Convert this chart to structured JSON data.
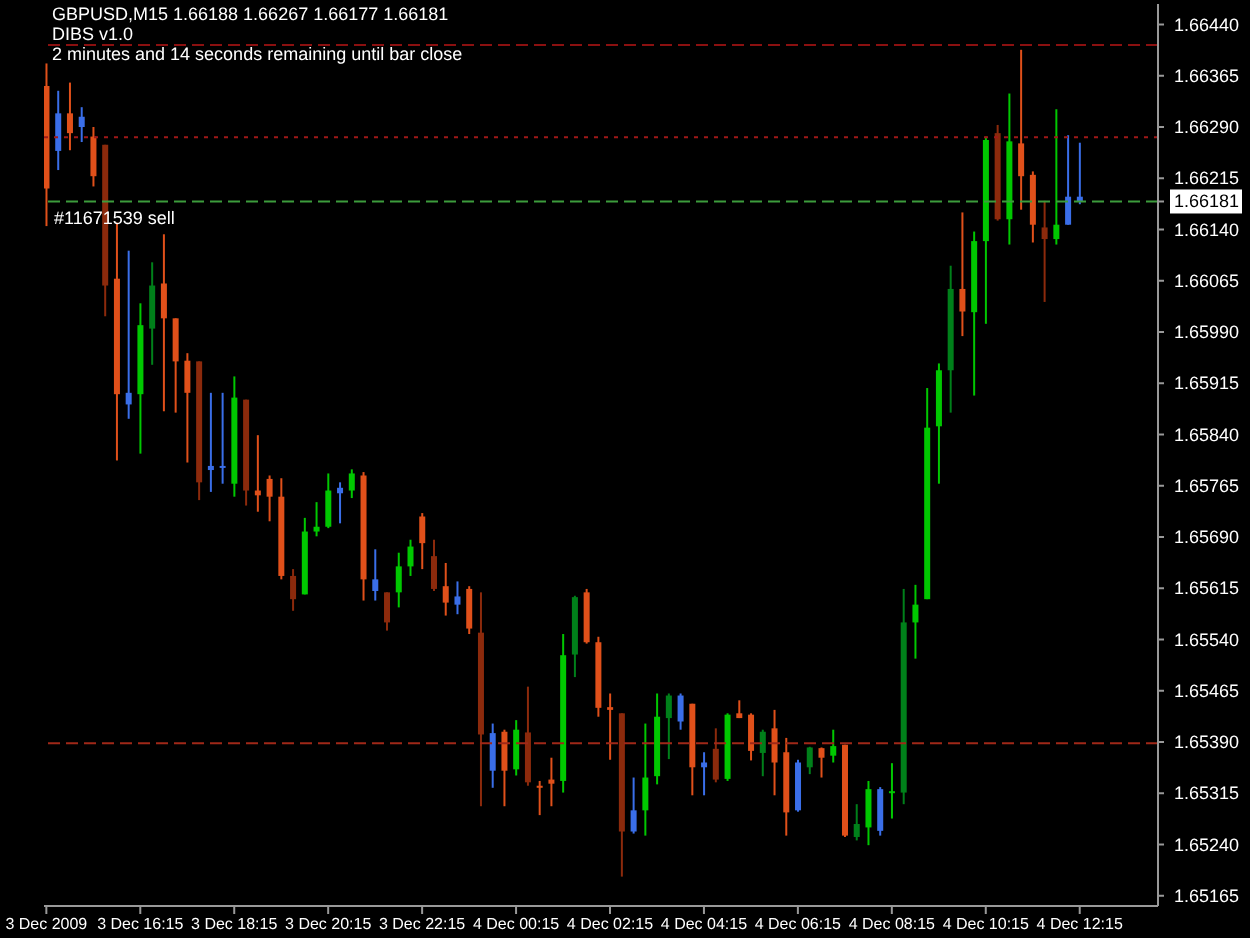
{
  "chart_data": {
    "type": "candlestick",
    "title": "GBPUSD,M15  1.66188 1.66267 1.66177 1.66181",
    "subtitle": "DIBS v1.0",
    "annotations": [
      "2 minutes and 14 seconds remaining until bar close"
    ],
    "x": [
      "2009-12-03T14:15",
      "2009-12-03T14:30",
      "2009-12-03T14:45",
      "2009-12-03T15:00",
      "2009-12-03T15:15",
      "2009-12-03T15:30",
      "2009-12-03T15:45",
      "2009-12-03T16:00",
      "2009-12-03T16:15",
      "2009-12-03T16:30",
      "2009-12-03T16:45",
      "2009-12-03T17:00",
      "2009-12-03T17:15",
      "2009-12-03T17:30",
      "2009-12-03T17:45",
      "2009-12-03T18:00",
      "2009-12-03T18:15",
      "2009-12-03T18:30",
      "2009-12-03T18:45",
      "2009-12-03T19:00",
      "2009-12-03T19:15",
      "2009-12-03T19:30",
      "2009-12-03T19:45",
      "2009-12-03T20:00",
      "2009-12-03T20:15",
      "2009-12-03T20:30",
      "2009-12-03T20:45",
      "2009-12-03T21:00",
      "2009-12-03T21:15",
      "2009-12-03T21:30",
      "2009-12-03T21:45",
      "2009-12-03T22:00",
      "2009-12-03T22:15",
      "2009-12-03T22:30",
      "2009-12-03T22:45",
      "2009-12-03T23:00",
      "2009-12-03T23:15",
      "2009-12-03T23:30",
      "2009-12-03T23:45",
      "2009-12-04T00:00",
      "2009-12-04T00:15",
      "2009-12-04T00:30",
      "2009-12-04T00:45",
      "2009-12-04T01:00",
      "2009-12-04T01:15",
      "2009-12-04T01:30",
      "2009-12-04T01:45",
      "2009-12-04T02:00",
      "2009-12-04T02:15",
      "2009-12-04T02:30",
      "2009-12-04T02:45",
      "2009-12-04T03:00",
      "2009-12-04T03:15",
      "2009-12-04T03:30",
      "2009-12-04T03:45",
      "2009-12-04T04:00",
      "2009-12-04T04:15",
      "2009-12-04T04:30",
      "2009-12-04T04:45",
      "2009-12-04T05:00",
      "2009-12-04T05:15",
      "2009-12-04T05:30",
      "2009-12-04T05:45",
      "2009-12-04T06:00",
      "2009-12-04T06:15",
      "2009-12-04T06:30",
      "2009-12-04T06:45",
      "2009-12-04T07:00",
      "2009-12-04T07:15",
      "2009-12-04T07:30",
      "2009-12-04T07:45",
      "2009-12-04T08:00",
      "2009-12-04T08:15",
      "2009-12-04T08:30",
      "2009-12-04T08:45",
      "2009-12-04T09:00",
      "2009-12-04T09:15",
      "2009-12-04T09:30",
      "2009-12-04T09:45",
      "2009-12-04T10:00",
      "2009-12-04T10:15",
      "2009-12-04T10:30",
      "2009-12-04T10:45",
      "2009-12-04T11:00",
      "2009-12-04T11:15",
      "2009-12-04T11:30",
      "2009-12-04T11:45",
      "2009-12-04T12:00",
      "2009-12-04T12:15"
    ],
    "ohlc": [
      [
        1.6635,
        1.66383,
        1.66145,
        1.662
      ],
      [
        1.66255,
        1.66343,
        1.66227,
        1.6631
      ],
      [
        1.6631,
        1.66355,
        1.66256,
        1.66281
      ],
      [
        1.6629,
        1.66319,
        1.66268,
        1.66305
      ],
      [
        1.66276,
        1.6629,
        1.66203,
        1.66218
      ],
      [
        1.66264,
        1.66264,
        1.66013,
        1.66058
      ],
      [
        1.66068,
        1.6615,
        1.65802,
        1.65899
      ],
      [
        1.65901,
        1.66109,
        1.65863,
        1.65884
      ],
      [
        1.65899,
        1.66032,
        1.65812,
        1.66
      ],
      [
        1.65995,
        1.66092,
        1.65942,
        1.66058
      ],
      [
        1.66061,
        1.66133,
        1.65874,
        1.6601
      ],
      [
        1.6601,
        1.6601,
        1.65872,
        1.65947
      ],
      [
        1.65948,
        1.65959,
        1.65799,
        1.65901
      ],
      [
        1.65947,
        1.65947,
        1.65744,
        1.6577
      ],
      [
        1.65788,
        1.65901,
        1.65756,
        1.65794
      ],
      [
        1.65792,
        1.65901,
        1.65768,
        1.65794
      ],
      [
        1.65768,
        1.65925,
        1.65749,
        1.65894
      ],
      [
        1.65891,
        1.65891,
        1.65736,
        1.65758
      ],
      [
        1.65758,
        1.65839,
        1.65727,
        1.65751
      ],
      [
        1.65775,
        1.6578,
        1.65713,
        1.65749
      ],
      [
        1.65749,
        1.65776,
        1.65628,
        1.65633
      ],
      [
        1.65633,
        1.65643,
        1.65582,
        1.65599
      ],
      [
        1.65606,
        1.65718,
        1.65606,
        1.65698
      ],
      [
        1.65698,
        1.65741,
        1.65691,
        1.65705
      ],
      [
        1.65705,
        1.65783,
        1.65703,
        1.65758
      ],
      [
        1.65754,
        1.6577,
        1.6571,
        1.65762
      ],
      [
        1.65758,
        1.65789,
        1.65747,
        1.65783
      ],
      [
        1.6578,
        1.65785,
        1.65597,
        1.65628
      ],
      [
        1.65628,
        1.65672,
        1.65597,
        1.65611
      ],
      [
        1.65609,
        1.65609,
        1.65553,
        1.65565
      ],
      [
        1.65609,
        1.65667,
        1.65587,
        1.65647
      ],
      [
        1.65647,
        1.65686,
        1.65633,
        1.65676
      ],
      [
        1.6572,
        1.65725,
        1.65643,
        1.65681
      ],
      [
        1.65662,
        1.65686,
        1.65611,
        1.65614
      ],
      [
        1.65618,
        1.65652,
        1.65575,
        1.65594
      ],
      [
        1.65591,
        1.65625,
        1.65577,
        1.65603
      ],
      [
        1.65614,
        1.65618,
        1.65548,
        1.65556
      ],
      [
        1.6555,
        1.65609,
        1.65296,
        1.65401
      ],
      [
        1.65403,
        1.65417,
        1.65323,
        1.65348
      ],
      [
        1.65405,
        1.65408,
        1.65296,
        1.65348
      ],
      [
        1.6535,
        1.65422,
        1.65341,
        1.65408
      ],
      [
        1.65404,
        1.65471,
        1.65326,
        1.65331
      ],
      [
        1.65326,
        1.65333,
        1.65283,
        1.65323
      ],
      [
        1.65335,
        1.65367,
        1.65296,
        1.65329
      ],
      [
        1.65333,
        1.65548,
        1.65316,
        1.65517
      ],
      [
        1.65518,
        1.65604,
        1.65485,
        1.65602
      ],
      [
        1.65609,
        1.65614,
        1.65534,
        1.65536
      ],
      [
        1.65536,
        1.65544,
        1.65427,
        1.6544
      ],
      [
        1.65441,
        1.65461,
        1.65364,
        1.65437
      ],
      [
        1.65432,
        1.65432,
        1.65193,
        1.65259
      ],
      [
        1.65259,
        1.65338,
        1.65256,
        1.6529
      ],
      [
        1.6529,
        1.65417,
        1.65253,
        1.65338
      ],
      [
        1.6534,
        1.65461,
        1.65328,
        1.65427
      ],
      [
        1.65425,
        1.65461,
        1.65365,
        1.65458
      ],
      [
        1.65458,
        1.65461,
        1.65408,
        1.6542
      ],
      [
        1.65446,
        1.65446,
        1.65312,
        1.65353
      ],
      [
        1.65353,
        1.65375,
        1.65312,
        1.6536
      ],
      [
        1.6538,
        1.6541,
        1.65331,
        1.65335
      ],
      [
        1.65336,
        1.65432,
        1.65333,
        1.6543
      ],
      [
        1.65432,
        1.65451,
        1.65425,
        1.65425
      ],
      [
        1.6543,
        1.65432,
        1.65363,
        1.65377
      ],
      [
        1.65374,
        1.65408,
        1.6534,
        1.65405
      ],
      [
        1.6541,
        1.65437,
        1.65312,
        1.6536
      ],
      [
        1.65375,
        1.65396,
        1.65253,
        1.65287
      ],
      [
        1.6529,
        1.65364,
        1.65288,
        1.6536
      ],
      [
        1.65353,
        1.65383,
        1.65343,
        1.65382
      ],
      [
        1.65381,
        1.65382,
        1.65338,
        1.65367
      ],
      [
        1.6537,
        1.65408,
        1.6536,
        1.65384
      ],
      [
        1.65386,
        1.65386,
        1.65251,
        1.65253
      ],
      [
        1.65251,
        1.65299,
        1.65246,
        1.6527
      ],
      [
        1.65265,
        1.65333,
        1.65239,
        1.65321
      ],
      [
        1.65321,
        1.65324,
        1.65253,
        1.6526
      ],
      [
        1.65316,
        1.65359,
        1.65278,
        1.65318
      ],
      [
        1.65316,
        1.65614,
        1.65299,
        1.65565
      ],
      [
        1.65565,
        1.6562,
        1.65512,
        1.65591
      ],
      [
        1.65599,
        1.65908,
        1.65599,
        1.6585
      ],
      [
        1.65852,
        1.65944,
        1.65768,
        1.65934
      ],
      [
        1.65934,
        1.66087,
        1.65872,
        1.66053
      ],
      [
        1.66053,
        1.66165,
        1.65984,
        1.6602
      ],
      [
        1.66019,
        1.66137,
        1.65897,
        1.66123
      ],
      [
        1.66123,
        1.66276,
        1.66002,
        1.66271
      ],
      [
        1.66281,
        1.66293,
        1.66153,
        1.66155
      ],
      [
        1.66155,
        1.66339,
        1.66118,
        1.66269
      ],
      [
        1.66266,
        1.66403,
        1.66169,
        1.66218
      ],
      [
        1.6622,
        1.66225,
        1.66121,
        1.66147
      ],
      [
        1.66143,
        1.66182,
        1.66034,
        1.66126
      ],
      [
        1.66126,
        1.66316,
        1.66118,
        1.66147
      ],
      [
        1.66147,
        1.66278,
        1.66147,
        1.66188
      ],
      [
        1.66188,
        1.66267,
        1.66177,
        1.66181
      ]
    ],
    "colors": [
      "#e0501a",
      "#3a6ee8",
      "#e0501a",
      "#3a6ee8",
      "#e0501a",
      "#8c2a0c",
      "#e0501a",
      "#3a6ee8",
      "#00c800",
      "#00801a",
      "#e0501a",
      "#e0501a",
      "#e0501a",
      "#8c2a0c",
      "#3a6ee8",
      "#3a6ee8",
      "#00c800",
      "#8c2a0c",
      "#e0501a",
      "#e0501a",
      "#e0501a",
      "#8c2a0c",
      "#00c800",
      "#00c800",
      "#00c800",
      "#3a6ee8",
      "#00c800",
      "#e0501a",
      "#3a6ee8",
      "#8c2a0c",
      "#00c800",
      "#00c800",
      "#e0501a",
      "#8c2a0c",
      "#e0501a",
      "#3a6ee8",
      "#e0501a",
      "#8c2a0c",
      "#3a6ee8",
      "#e0501a",
      "#00c800",
      "#8c2a0c",
      "#e0501a",
      "#e0501a",
      "#00c800",
      "#00801a",
      "#e0501a",
      "#e0501a",
      "#e0501a",
      "#8c2a0c",
      "#3a6ee8",
      "#00c800",
      "#00c800",
      "#00801a",
      "#3a6ee8",
      "#e0501a",
      "#3a6ee8",
      "#8c2a0c",
      "#00c800",
      "#e0501a",
      "#e0501a",
      "#00801a",
      "#e0501a",
      "#e0501a",
      "#3a6ee8",
      "#00801a",
      "#e0501a",
      "#00c800",
      "#e0501a",
      "#00801a",
      "#00c800",
      "#3a6ee8",
      "#00c800",
      "#00801a",
      "#00c800",
      "#00c800",
      "#00c800",
      "#00801a",
      "#e0501a",
      "#00c800",
      "#00c800",
      "#8c2a0c",
      "#00c800",
      "#e0501a",
      "#e0501a",
      "#8c2a0c",
      "#00c800",
      "#3a6ee8",
      "#3a6ee8"
    ],
    "xlim": [
      "2009-12-03T14:12",
      "2009-12-04T13:55"
    ],
    "xticks": [
      {
        "value": "2009-12-03T14:15",
        "label": "3 Dec 2009"
      },
      {
        "value": "2009-12-03T16:15",
        "label": "3 Dec 16:15"
      },
      {
        "value": "2009-12-03T18:15",
        "label": "3 Dec 18:15"
      },
      {
        "value": "2009-12-03T20:15",
        "label": "3 Dec 20:15"
      },
      {
        "value": "2009-12-03T22:15",
        "label": "3 Dec 22:15"
      },
      {
        "value": "2009-12-04T00:15",
        "label": "4 Dec 00:15"
      },
      {
        "value": "2009-12-04T02:15",
        "label": "4 Dec 02:15"
      },
      {
        "value": "2009-12-04T04:15",
        "label": "4 Dec 04:15"
      },
      {
        "value": "2009-12-04T06:15",
        "label": "4 Dec 06:15"
      },
      {
        "value": "2009-12-04T08:15",
        "label": "4 Dec 08:15"
      },
      {
        "value": "2009-12-04T10:15",
        "label": "4 Dec 10:15"
      },
      {
        "value": "2009-12-04T12:15",
        "label": "4 Dec 12:15"
      }
    ],
    "ylim": [
      1.6515,
      1.6647
    ],
    "yticks": [
      {
        "value": 1.6644,
        "label": "1.66440"
      },
      1.66365,
      {
        "value": 1.6629,
        "label": "1.66290"
      },
      1.66215,
      1.66181,
      {
        "value": 1.6614,
        "label": "1.66140"
      },
      1.66065,
      {
        "value": 1.6599,
        "label": "1.65990"
      },
      1.65915,
      {
        "value": 1.6584,
        "label": "1.65840"
      },
      1.65765,
      {
        "value": 1.6569,
        "label": "1.65690"
      },
      1.65615,
      {
        "value": 1.6554,
        "label": "1.65540"
      },
      1.65465,
      {
        "value": 1.6539,
        "label": "1.65390"
      },
      1.65315,
      {
        "value": 1.6524,
        "label": "1.65240"
      },
      1.65165
    ],
    "ref_lines": [
      {
        "axis": "y",
        "value": 1.6641,
        "color": "#8b1010",
        "line_style": "dashed"
      },
      {
        "axis": "y",
        "value": 1.66275,
        "color": "#a01818",
        "line_style": "dotted"
      },
      {
        "axis": "y",
        "value": 1.66181,
        "label": "#11671539 sell",
        "color": "#3c9c3c",
        "line_style": "dashed"
      },
      {
        "axis": "y",
        "value": 1.65388,
        "color": "#a02818",
        "line_style": "dashed"
      }
    ]
  }
}
